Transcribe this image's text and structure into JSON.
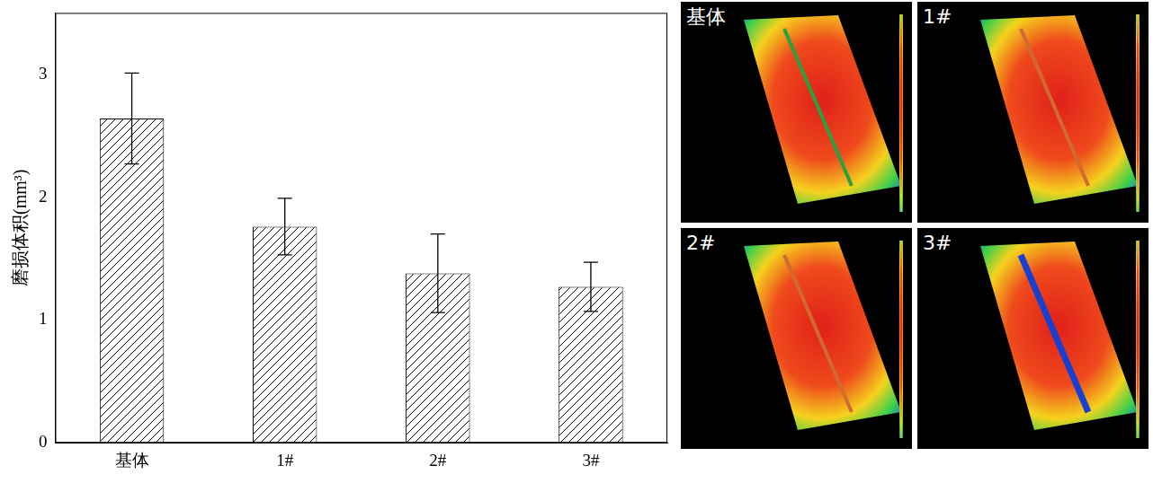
{
  "chart_data": {
    "type": "bar",
    "y_label": "磨损体积(mm³)",
    "categories": [
      "基体",
      "1#",
      "2#",
      "3#"
    ],
    "values": [
      2.64,
      1.76,
      1.38,
      1.27
    ],
    "errors": [
      0.37,
      0.23,
      0.32,
      0.2
    ],
    "color": "#000000",
    "ylim": [
      0,
      3.5
    ],
    "yticks": [
      0,
      1,
      2,
      3
    ],
    "grid": false
  },
  "images": [
    {
      "label": "基体"
    },
    {
      "label": "1#"
    },
    {
      "label": "2#"
    },
    {
      "label": "3#"
    }
  ]
}
